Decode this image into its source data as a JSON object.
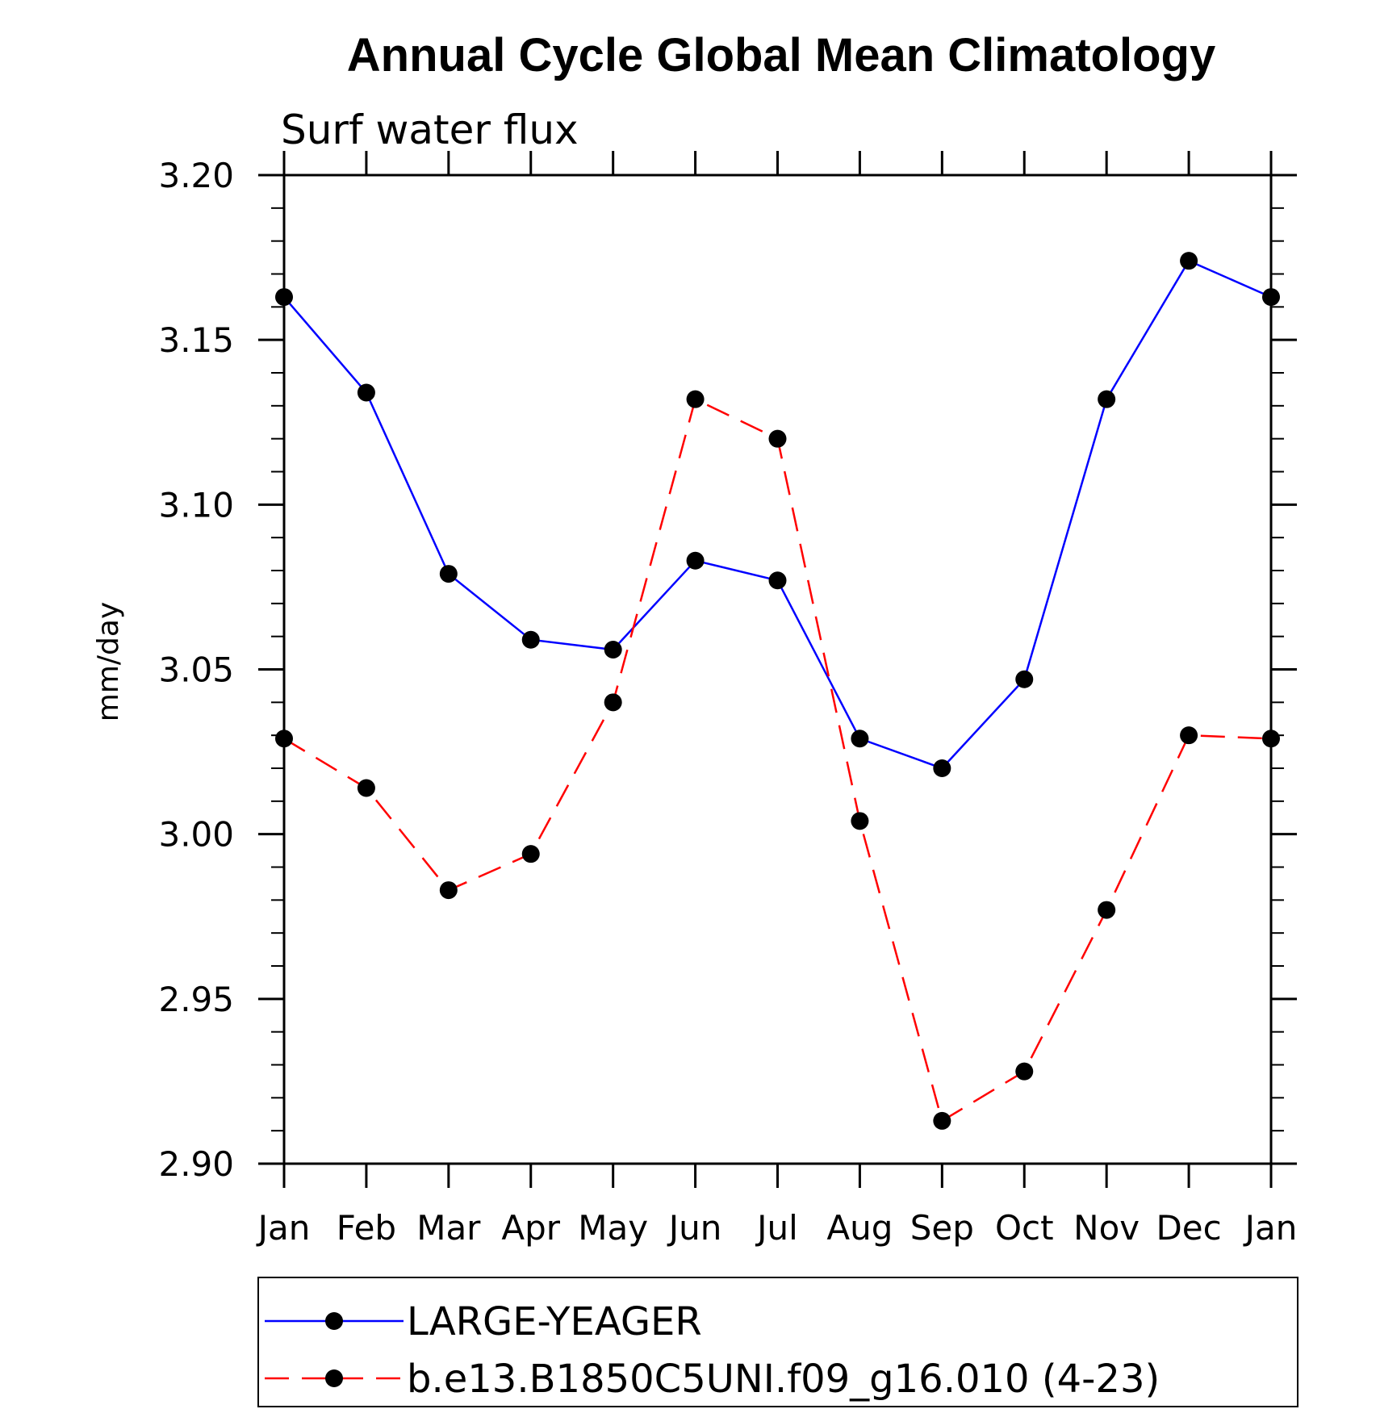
{
  "chart_data": {
    "type": "line",
    "title": "Annual Cycle Global Mean Climatology",
    "subtitle": "Surf water flux",
    "xlabel": "",
    "ylabel": "mm/day",
    "categories": [
      "Jan",
      "Feb",
      "Mar",
      "Apr",
      "May",
      "Jun",
      "Jul",
      "Aug",
      "Sep",
      "Oct",
      "Nov",
      "Dec",
      "Jan"
    ],
    "ylim": [
      2.9,
      3.2
    ],
    "yticks": [
      "2.90",
      "2.95",
      "3.00",
      "3.05",
      "3.10",
      "3.15",
      "3.20"
    ],
    "grid": false,
    "legend_position": "bottom",
    "series": [
      {
        "name": "LARGE-YEAGER",
        "color": "#0000ff",
        "dash": "solid",
        "marker": "filled-circle",
        "values": [
          3.163,
          3.134,
          3.079,
          3.059,
          3.056,
          3.083,
          3.077,
          3.029,
          3.02,
          3.047,
          3.132,
          3.174,
          3.163
        ]
      },
      {
        "name": "b.e13.B1850C5UNI.f09_g16.010 (4-23)",
        "color": "#ff0000",
        "dash": "dashed",
        "marker": "filled-circle",
        "values": [
          3.029,
          3.014,
          2.983,
          2.994,
          3.04,
          3.132,
          3.12,
          3.004,
          2.913,
          2.928,
          2.977,
          3.03,
          3.029
        ]
      }
    ]
  }
}
